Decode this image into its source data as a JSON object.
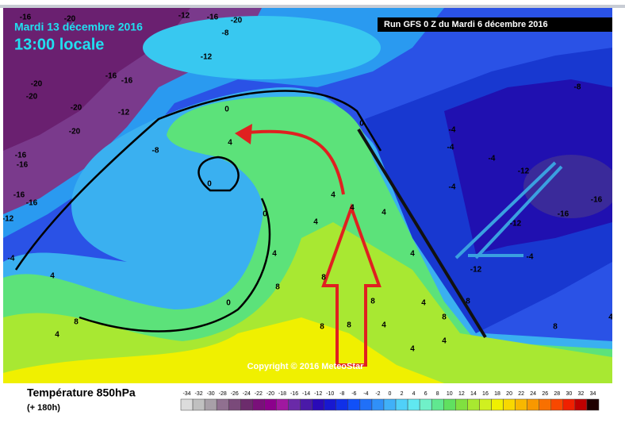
{
  "header": {
    "date": "Mardi 13 décembre 2016",
    "time": "13:00 locale",
    "run": "Run GFS 0 Z du Mardi 6 décembre 2016"
  },
  "map": {
    "copyright": "Copyright © 2016 MeteoStar",
    "labels": [
      -16,
      -20,
      -12,
      -16,
      -20,
      -8,
      -12,
      -16,
      -20,
      -20,
      -16,
      -20,
      -12,
      -20,
      -16,
      -16,
      -16,
      -8,
      -12,
      -16,
      -4,
      -4,
      -8,
      -4,
      -12,
      -16,
      -16,
      -12,
      -4,
      -12,
      -4,
      0,
      0,
      4,
      0,
      0,
      4,
      4,
      4,
      4,
      -4,
      4,
      0,
      8,
      8,
      8,
      4,
      8,
      8,
      8,
      4,
      4,
      4,
      8,
      8,
      8,
      4,
      4,
      4,
      4
    ]
  },
  "legend": {
    "title": "Température 850hPa",
    "subtitle": "(+ 180h)",
    "scale": [
      -34,
      -32,
      -30,
      -28,
      -26,
      -24,
      -22,
      -20,
      -18,
      -16,
      -14,
      -12,
      -10,
      -8,
      -6,
      -4,
      -2,
      0,
      2,
      4,
      6,
      8,
      10,
      12,
      14,
      16,
      18,
      20,
      22,
      24,
      26,
      28,
      30,
      32,
      34
    ],
    "colors": [
      "#dcdcdc",
      "#c0c0c0",
      "#a8a0a8",
      "#907090",
      "#7a4a7a",
      "#6c2c6c",
      "#7a107a",
      "#8c008c",
      "#a018a0",
      "#6a2aa8",
      "#4a1aa8",
      "#2a0ab8",
      "#1818d0",
      "#1030e8",
      "#1050f8",
      "#2070f8",
      "#3090f8",
      "#40b0f8",
      "#50d0f8",
      "#60e8f0",
      "#70f0c8",
      "#60e890",
      "#60e060",
      "#80e040",
      "#a8e830",
      "#d0f020",
      "#f0f000",
      "#f8d800",
      "#f8b800",
      "#f89800",
      "#f87000",
      "#f84800",
      "#f02000",
      "#c00000",
      "#200000"
    ]
  }
}
